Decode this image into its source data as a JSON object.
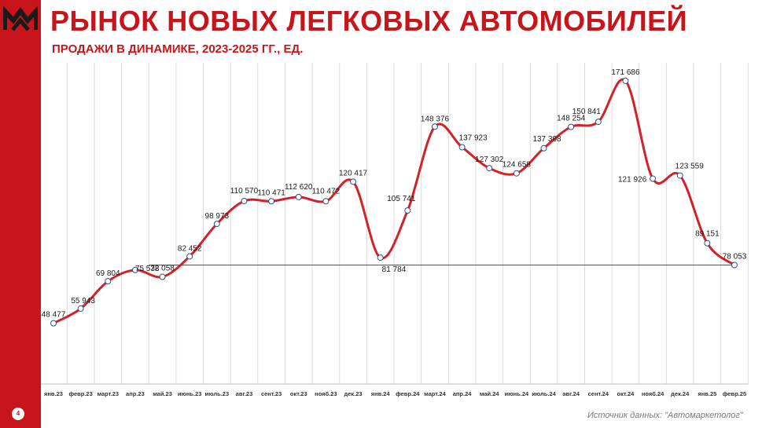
{
  "header": {
    "title": "РЫНОК НОВЫХ ЛЕГКОВЫХ АВТОМОБИЛЕЙ",
    "subtitle": "ПРОДАЖИ В ДИНАМИКЕ, 2023-2025 ГГ., ЕД."
  },
  "footer": {
    "source": "Источник данных: \"Автомаркетолог\"",
    "page_number": "4"
  },
  "logo": {
    "icon": "company-logo-icon",
    "color": "#1a1a1a"
  },
  "colors": {
    "brand_red": "#c8151b",
    "line": "#d42027",
    "reference_line": "#b3262c",
    "grid": "#dcdcdc",
    "marker_stroke": "#2f4f8f"
  },
  "chart_data": {
    "type": "line",
    "title": "",
    "xlabel": "",
    "ylabel": "",
    "categories": [
      "янв.23",
      "февр.23",
      "март.23",
      "апр.23",
      "май.23",
      "июнь.23",
      "июль.23",
      "авг.23",
      "сент.23",
      "окт.23",
      "нояб.23",
      "дек.23",
      "янв.24",
      "февр.24",
      "март.24",
      "апр.24",
      "май.24",
      "июнь.24",
      "июль.24",
      "авг.24",
      "сент.24",
      "окт.24",
      "нояб.24",
      "дек.24",
      "янв.25",
      "февр.25"
    ],
    "series": [
      {
        "values": [
          48477,
          55943,
          69804,
          75538,
          72058,
          82452,
          98973,
          110570,
          110471,
          112620,
          110472,
          120417,
          81784,
          105741,
          148376,
          137923,
          127302,
          124658,
          137398,
          148254,
          150841,
          171686,
          121926,
          123559,
          89151,
          78053
        ],
        "labels": [
          "48 477",
          "55 943",
          "69 804",
          "75 538",
          "72 058",
          "82 452",
          "98 973",
          "110 570",
          "110 471",
          "112 620",
          "110 472",
          "120 417",
          "81 784",
          "105 741",
          "148 376",
          "137 923",
          "127 302",
          "124 658",
          "137 398",
          "148 254",
          "150 841",
          "171 686",
          "121 926",
          "123 559",
          "89 151",
          "78 053"
        ]
      }
    ],
    "reference_line": 78053,
    "ylim": [
      20000,
      180000
    ],
    "grid": "vertical",
    "legend": "none"
  }
}
